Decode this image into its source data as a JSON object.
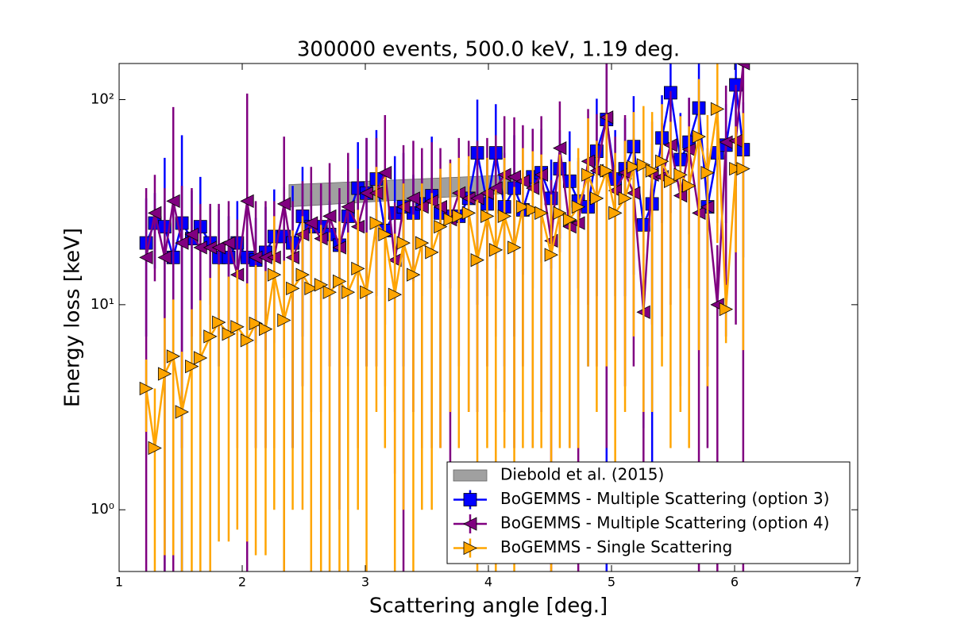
{
  "chart_data": {
    "type": "errorbar",
    "title": "300000 events, 500.0 keV, 1.19 deg.",
    "x_label": "Scattering angle [deg.]",
    "y_label": "Energy loss [keV]",
    "log_y": true,
    "legend": "lower right",
    "xlim": [
      1,
      7
    ],
    "xticks": [
      1,
      2,
      3,
      4,
      5,
      6,
      7
    ],
    "ylim": [
      0.5,
      150
    ],
    "yticks": [
      {
        "value": 1,
        "label": "10⁰"
      },
      {
        "value": 10,
        "label": "10¹"
      },
      {
        "value": 100,
        "label": "10²"
      }
    ],
    "band": {
      "name": "Diebold et al. (2015)",
      "color": "#a0a0a0",
      "x": [
        2.38,
        4.2
      ],
      "lower": [
        30,
        35
      ],
      "upper": [
        38.5,
        43
      ]
    },
    "x": [
      1.22,
      1.29,
      1.37,
      1.44,
      1.51,
      1.59,
      1.66,
      1.74,
      1.81,
      1.89,
      1.96,
      2.04,
      2.11,
      2.19,
      2.26,
      2.34,
      2.41,
      2.49,
      2.56,
      2.64,
      2.71,
      2.79,
      2.86,
      2.94,
      3.01,
      3.09,
      3.16,
      3.24,
      3.31,
      3.39,
      3.46,
      3.54,
      3.61,
      3.69,
      3.76,
      3.84,
      3.91,
      3.99,
      4.06,
      4.13,
      4.21,
      4.28,
      4.36,
      4.43,
      4.51,
      4.58,
      4.66,
      4.73,
      4.81,
      4.88,
      4.96,
      5.03,
      5.11,
      5.18,
      5.26,
      5.33,
      5.41,
      5.48,
      5.56,
      5.63,
      5.71,
      5.78,
      5.86,
      5.93,
      6.01,
      6.07
    ],
    "series": [
      {
        "name": "BoGEMMS - Multiple Scattering (option 3)",
        "color": "#0000ff",
        "marker": "square",
        "values": [
          20,
          25,
          24,
          17,
          25,
          21,
          24,
          20,
          17,
          17,
          20,
          17,
          16.5,
          18,
          21.5,
          21.5,
          20,
          27,
          24,
          24,
          22,
          19.5,
          27,
          37,
          35,
          41,
          23,
          28,
          30,
          28,
          31,
          34,
          28,
          27,
          27,
          33,
          55,
          31,
          55,
          30,
          37,
          29,
          42,
          44,
          33,
          46,
          40,
          32,
          30,
          56,
          80,
          41,
          46,
          59,
          24.5,
          31,
          65,
          108,
          51,
          62,
          91,
          30,
          55,
          60,
          118,
          57
        ],
        "errors": [
          13,
          10,
          28,
          12,
          42,
          15,
          18,
          10,
          12,
          10,
          12,
          10,
          10,
          12,
          15,
          16,
          18,
          20,
          12,
          14,
          10,
          12,
          18,
          25,
          30,
          30,
          15,
          25,
          25,
          15,
          20,
          32,
          15,
          15,
          15,
          15,
          45,
          20,
          40,
          25,
          30,
          15,
          30,
          28,
          18,
          25,
          30,
          20,
          25,
          45,
          90,
          30,
          35,
          45,
          22,
          30,
          40,
          80,
          35,
          40,
          60,
          25,
          30,
          35,
          80,
          40
        ]
      },
      {
        "name": "BoGEMMS - Multiple Scattering (option 4)",
        "color": "#800080",
        "marker": "triangle-left",
        "values": [
          17,
          28,
          17,
          32,
          20,
          22,
          19,
          19,
          19,
          20,
          14,
          32,
          17,
          17,
          17,
          31,
          17,
          22,
          25,
          21,
          27,
          19,
          30,
          24,
          35,
          35,
          44,
          16.5,
          30,
          33,
          30,
          32,
          30,
          26,
          35,
          33,
          33,
          35,
          37,
          43,
          42,
          40,
          37,
          43,
          20.5,
          58,
          24,
          25,
          50,
          45,
          82,
          36,
          44,
          35,
          9.2,
          43,
          42,
          60,
          34,
          57,
          28,
          30,
          10,
          62,
          63,
          150
        ],
        "errors": [
          20,
          15,
          20,
          60,
          18,
          15,
          12,
          12,
          12,
          12,
          12,
          75,
          15,
          15,
          15,
          35,
          15,
          18,
          22,
          18,
          22,
          18,
          25,
          22,
          30,
          30,
          40,
          15,
          30,
          30,
          28,
          30,
          28,
          25,
          30,
          30,
          30,
          30,
          30,
          40,
          40,
          35,
          35,
          40,
          20,
          40,
          22,
          25,
          40,
          40,
          80,
          30,
          40,
          30,
          8.5,
          35,
          35,
          50,
          30,
          45,
          28,
          28,
          9.5,
          55,
          55,
          150
        ]
      },
      {
        "name": "BoGEMMS - Single Scattering",
        "color": "#ffa500",
        "marker": "triangle-right",
        "values": [
          3.9,
          2.0,
          4.6,
          5.6,
          3.0,
          5.0,
          5.5,
          7.0,
          8.2,
          7.2,
          7.8,
          6.7,
          8.1,
          7.6,
          14,
          8.4,
          12,
          14,
          12,
          12.5,
          11.5,
          13,
          11.5,
          15,
          11.5,
          25,
          22,
          11.2,
          20,
          14,
          20,
          18,
          24,
          26,
          27,
          28,
          16.5,
          27,
          18.5,
          27,
          19,
          30,
          29,
          28,
          17.5,
          28,
          26,
          30,
          43,
          33,
          45,
          28,
          33,
          47,
          48,
          45,
          50,
          40,
          43,
          38,
          66,
          44,
          90,
          9.5,
          46,
          46
        ],
        "errors": [
          1.5,
          1.9,
          4,
          5,
          2.9,
          4.5,
          5,
          6.5,
          7.5,
          6.5,
          7,
          6,
          7.5,
          7,
          13,
          8,
          11,
          13,
          11.5,
          12,
          11,
          12.5,
          11,
          14,
          11,
          22,
          20,
          11,
          19,
          13.5,
          19,
          17,
          22,
          23,
          25,
          25,
          16,
          25,
          18,
          25,
          18.5,
          28,
          27,
          26,
          17,
          26,
          24,
          28,
          38,
          30,
          40,
          27,
          30,
          40,
          45,
          42,
          45,
          38,
          40,
          36,
          60,
          40,
          70,
          3,
          28,
          40
        ]
      }
    ]
  }
}
